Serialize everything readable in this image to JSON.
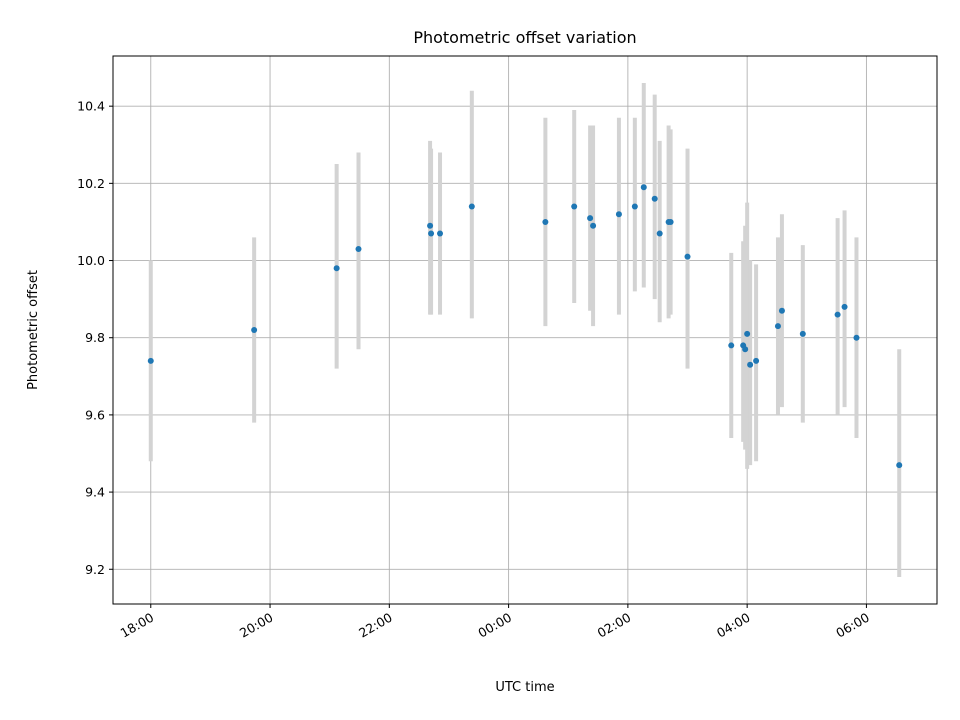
{
  "chart_data": {
    "type": "scatter",
    "title": "Photometric offset variation",
    "xlabel": "UTC time",
    "ylabel": "Photometric offset",
    "x_axis": {
      "kind": "time",
      "start": "2000-01-01T17:22",
      "end": "2000-01-02T07:11",
      "ticks": [
        {
          "t": "2000-01-01T18:00",
          "label": "18:00"
        },
        {
          "t": "2000-01-01T20:00",
          "label": "20:00"
        },
        {
          "t": "2000-01-01T22:00",
          "label": "22:00"
        },
        {
          "t": "2000-01-02T00:00",
          "label": "00:00"
        },
        {
          "t": "2000-01-02T02:00",
          "label": "02:00"
        },
        {
          "t": "2000-01-02T04:00",
          "label": "04:00"
        },
        {
          "t": "2000-01-02T06:00",
          "label": "06:00"
        }
      ]
    },
    "ylim": [
      9.11,
      10.53
    ],
    "yticks": [
      9.2,
      9.4,
      9.6,
      9.8,
      10.0,
      10.2,
      10.4
    ],
    "grid": true,
    "colors": {
      "marker": "#1f77b4",
      "errorbar": "#d3d3d3",
      "grid": "#b0b0b0"
    },
    "points": [
      {
        "x": "2000-01-01T18:00",
        "y": 9.74,
        "lo": 9.48,
        "hi": 10.0
      },
      {
        "x": "2000-01-01T19:44",
        "y": 9.82,
        "lo": 9.58,
        "hi": 10.06
      },
      {
        "x": "2000-01-01T21:07",
        "y": 9.98,
        "lo": 9.72,
        "hi": 10.25
      },
      {
        "x": "2000-01-01T21:29",
        "y": 10.03,
        "lo": 9.77,
        "hi": 10.28
      },
      {
        "x": "2000-01-01T22:41",
        "y": 10.09,
        "lo": 9.86,
        "hi": 10.31
      },
      {
        "x": "2000-01-01T22:42",
        "y": 10.07,
        "lo": 9.86,
        "hi": 10.29
      },
      {
        "x": "2000-01-01T22:51",
        "y": 10.07,
        "lo": 9.86,
        "hi": 10.28
      },
      {
        "x": "2000-01-01T23:23",
        "y": 10.14,
        "lo": 9.85,
        "hi": 10.44
      },
      {
        "x": "2000-01-02T00:37",
        "y": 10.1,
        "lo": 9.83,
        "hi": 10.37
      },
      {
        "x": "2000-01-02T01:06",
        "y": 10.14,
        "lo": 9.89,
        "hi": 10.39
      },
      {
        "x": "2000-01-02T01:22",
        "y": 10.11,
        "lo": 9.87,
        "hi": 10.35
      },
      {
        "x": "2000-01-02T01:25",
        "y": 10.09,
        "lo": 9.83,
        "hi": 10.35
      },
      {
        "x": "2000-01-02T01:51",
        "y": 10.12,
        "lo": 9.86,
        "hi": 10.37
      },
      {
        "x": "2000-01-02T02:07",
        "y": 10.14,
        "lo": 9.92,
        "hi": 10.37
      },
      {
        "x": "2000-01-02T02:16",
        "y": 10.19,
        "lo": 9.93,
        "hi": 10.46
      },
      {
        "x": "2000-01-02T02:27",
        "y": 10.16,
        "lo": 9.9,
        "hi": 10.43
      },
      {
        "x": "2000-01-02T02:32",
        "y": 10.07,
        "lo": 9.84,
        "hi": 10.31
      },
      {
        "x": "2000-01-02T02:41",
        "y": 10.1,
        "lo": 9.85,
        "hi": 10.35
      },
      {
        "x": "2000-01-02T02:43",
        "y": 10.1,
        "lo": 9.86,
        "hi": 10.34
      },
      {
        "x": "2000-01-02T03:00",
        "y": 10.01,
        "lo": 9.72,
        "hi": 10.29
      },
      {
        "x": "2000-01-02T03:44",
        "y": 9.78,
        "lo": 9.54,
        "hi": 10.02
      },
      {
        "x": "2000-01-02T03:56",
        "y": 9.78,
        "lo": 9.53,
        "hi": 10.05
      },
      {
        "x": "2000-01-02T03:58",
        "y": 9.77,
        "lo": 9.51,
        "hi": 10.09
      },
      {
        "x": "2000-01-02T04:00",
        "y": 9.81,
        "lo": 9.46,
        "hi": 10.15
      },
      {
        "x": "2000-01-02T04:03",
        "y": 9.73,
        "lo": 9.47,
        "hi": 10.0
      },
      {
        "x": "2000-01-02T04:09",
        "y": 9.74,
        "lo": 9.48,
        "hi": 9.99
      },
      {
        "x": "2000-01-02T04:31",
        "y": 9.83,
        "lo": 9.6,
        "hi": 10.06
      },
      {
        "x": "2000-01-02T04:35",
        "y": 9.87,
        "lo": 9.62,
        "hi": 10.12
      },
      {
        "x": "2000-01-02T04:56",
        "y": 9.81,
        "lo": 9.58,
        "hi": 10.04
      },
      {
        "x": "2000-01-02T05:31",
        "y": 9.86,
        "lo": 9.6,
        "hi": 10.11
      },
      {
        "x": "2000-01-02T05:38",
        "y": 9.88,
        "lo": 9.62,
        "hi": 10.13
      },
      {
        "x": "2000-01-02T05:50",
        "y": 9.8,
        "lo": 9.54,
        "hi": 10.06
      },
      {
        "x": "2000-01-02T06:33",
        "y": 9.47,
        "lo": 9.18,
        "hi": 9.77
      }
    ]
  }
}
